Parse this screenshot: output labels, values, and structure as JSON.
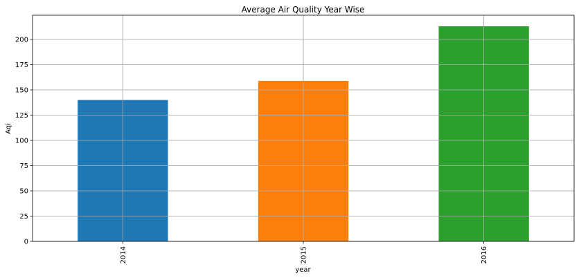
{
  "chart_data": {
    "type": "bar",
    "title": "Average Air Quality Year Wise",
    "xlabel": "year",
    "ylabel": "Aqi",
    "categories": [
      "2014",
      "2015",
      "2016"
    ],
    "values": [
      140,
      159,
      213
    ],
    "colors": [
      "#1f77b4",
      "#ff7f0e",
      "#2ca02c"
    ],
    "ylim": [
      0,
      224
    ],
    "yticks": [
      0,
      25,
      50,
      75,
      100,
      125,
      150,
      175,
      200
    ],
    "grid": true,
    "legend": "none"
  }
}
